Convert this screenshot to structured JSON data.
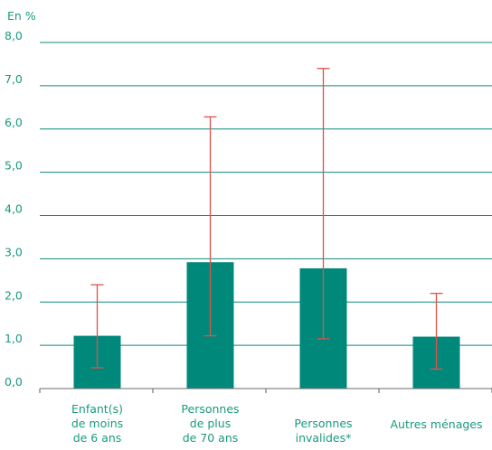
{
  "chart_data": {
    "type": "bar",
    "unit_label": "En %",
    "categories": [
      [
        "Enfant(s)",
        "de moins",
        "de 6 ans"
      ],
      [
        "Personnes",
        "de plus",
        "de 70 ans"
      ],
      [
        "Personnes",
        "invalides*"
      ],
      [
        "Autres ménages"
      ]
    ],
    "values": [
      1.22,
      2.92,
      2.78,
      1.2
    ],
    "error_low": [
      0.48,
      1.22,
      1.15,
      0.45
    ],
    "error_high": [
      2.4,
      6.28,
      7.4,
      2.2
    ],
    "y_ticks": [
      "0,0",
      "1,0",
      "2,0",
      "3,0",
      "4,0",
      "5,0",
      "6,0",
      "7,0",
      "8,0"
    ],
    "ylim": [
      0,
      8
    ],
    "grid": true,
    "colors": {
      "bar": "#00897b",
      "error_bar": "#e0504a",
      "grid": "#0f8a7a",
      "text": "#1a9a7e"
    }
  }
}
